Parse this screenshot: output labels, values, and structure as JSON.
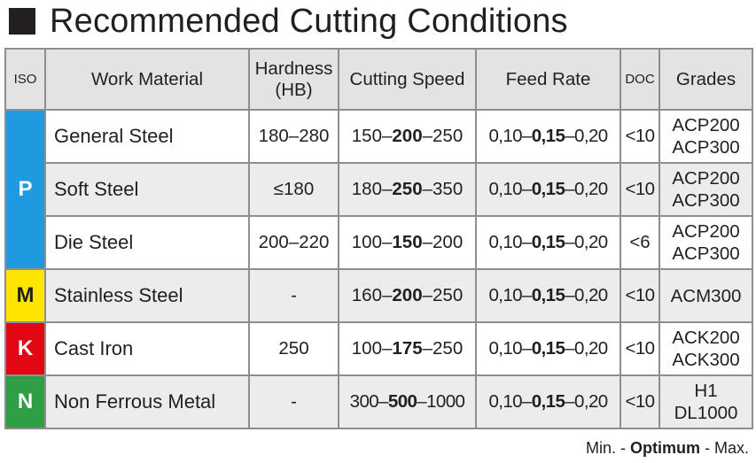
{
  "title": "Recommended Cutting Conditions",
  "headers": {
    "iso": "ISO",
    "work_material": "Work Material",
    "hardness_1": "Hardness",
    "hardness_2": "(HB)",
    "cutting_speed": "Cutting Speed",
    "feed_rate": "Feed Rate",
    "doc": "DOC",
    "grades": "Grades"
  },
  "iso_groups": [
    {
      "letter": "P",
      "color": "#1e9be0"
    },
    {
      "letter": "M",
      "color": "#ffe500"
    },
    {
      "letter": "K",
      "color": "#e30613"
    },
    {
      "letter": "N",
      "color": "#2e9f44"
    }
  ],
  "rows": [
    {
      "material": "General Steel",
      "hardness": "180–280",
      "speed": {
        "min": "150–",
        "opt": "200",
        "max": "–250"
      },
      "feed": {
        "min": "0,10–",
        "opt": "0,15",
        "max": "–0,20"
      },
      "doc": "<10",
      "grades": [
        "ACP200",
        "ACP300"
      ]
    },
    {
      "material": "Soft Steel",
      "hardness": "≤180",
      "speed": {
        "min": "180–",
        "opt": "250",
        "max": "–350"
      },
      "feed": {
        "min": "0,10–",
        "opt": "0,15",
        "max": "–0,20"
      },
      "doc": "<10",
      "grades": [
        "ACP200",
        "ACP300"
      ]
    },
    {
      "material": "Die Steel",
      "hardness": "200–220",
      "speed": {
        "min": "100–",
        "opt": "150",
        "max": "–200"
      },
      "feed": {
        "min": "0,10–",
        "opt": "0,15",
        "max": "–0,20"
      },
      "doc": "<6",
      "grades": [
        "ACP200",
        "ACP300"
      ]
    },
    {
      "material": "Stainless Steel",
      "hardness": "-",
      "speed": {
        "min": "160–",
        "opt": "200",
        "max": "–250"
      },
      "feed": {
        "min": "0,10–",
        "opt": "0,15",
        "max": "–0,20"
      },
      "doc": "<10",
      "grades": [
        "ACM300"
      ]
    },
    {
      "material": "Cast Iron",
      "hardness": "250",
      "speed": {
        "min": "100–",
        "opt": "175",
        "max": "–250"
      },
      "feed": {
        "min": "0,10–",
        "opt": "0,15",
        "max": "–0,20"
      },
      "doc": "<10",
      "grades": [
        "ACK200",
        "ACK300"
      ]
    },
    {
      "material": "Non Ferrous Metal",
      "hardness": "-",
      "speed": {
        "min": "300–",
        "opt": "500",
        "max": "–1000"
      },
      "feed": {
        "min": "0,10–",
        "opt": "0,15",
        "max": "–0,20"
      },
      "doc": "<10",
      "grades": [
        "H1",
        "DL1000"
      ]
    }
  ],
  "footnote": {
    "min": "Min. - ",
    "opt": "Optimum",
    "max": " - Max."
  }
}
